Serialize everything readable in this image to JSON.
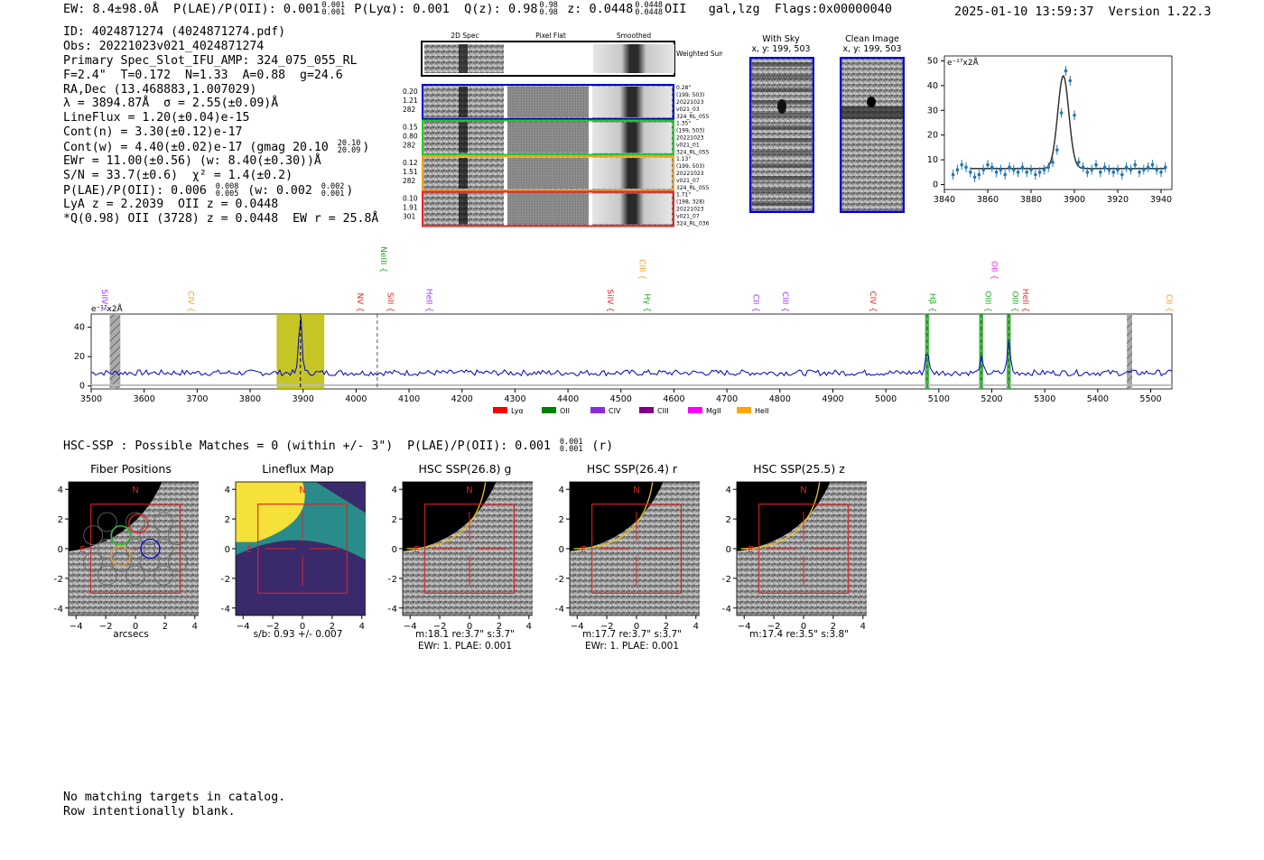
{
  "header": {
    "ew": "EW: 8.4±98.0Å",
    "plae_label": "P(LAE)/P(OII): 0.001",
    "plae_hi": "0.001",
    "plae_lo": "0.001",
    "plya": "P(Lyα): 0.001",
    "qz_label": "Q(z): 0.98",
    "qz_hi": "0.98",
    "qz_lo": "0.98",
    "z_label": "z: 0.0448",
    "z_hi": "0.0448",
    "z_lo": "0.0448",
    "z_line": "OII",
    "classification": "gal,lzg",
    "flags": "Flags:0x00000040",
    "timestamp": "2025-01-10 13:59:37",
    "version": "Version 1.22.3"
  },
  "info": {
    "id": "ID: 4024871274 (4024871274.pdf)",
    "obs": "Obs: 20221023v021_4024871274",
    "primary": "Primary Spec_Slot_IFU_AMP: 324_075_055_RL",
    "params": "F=2.4\"  T=0.172  N=1.33  A=0.88  g=24.6",
    "radec": "RA,Dec (13.468883,1.007029)",
    "lambda": "λ = 3894.87Å  σ = 2.55(±0.09)Å",
    "lineflux": "LineFlux = 1.20(±0.04)e-15",
    "contn": "Cont(n) = 3.30(±0.12)e-17",
    "contw": "Cont(w) = 4.40(±0.02)e-17 (gmag 20.10",
    "gmag_hi": "20.10",
    "gmag_lo": "20.09",
    "ewr": "EWr = 11.00(±0.56) (w: 8.40(±0.30))Å",
    "sn": "S/N = 33.7(±0.6)  χ² = 1.4(±0.2)",
    "plae2": "P(LAE)/P(OII): 0.006",
    "plae2_hi": "0.008",
    "plae2_lo": "0.005",
    "plae2_w": "(w: 0.002",
    "plae2_w_hi": "0.002",
    "plae2_w_lo": "0.001",
    "lya_z": "LyA z = 2.2039  OII z = 0.0448",
    "q_line": "*Q(0.98) OII (3728) z = 0.0448  EW r = 25.8Å"
  },
  "cutouts": {
    "col_titles": [
      "2D Spec",
      "Pixel Flat",
      "Smoothed"
    ],
    "weighted_sum": "Weighted Sum",
    "rows": [
      {
        "nums": [
          "0.20",
          "1.21",
          "282"
        ],
        "side": [
          "0.28\"",
          "(199, 503)",
          "20221023",
          "v021_03",
          "324_RL_055"
        ],
        "color": "#0000cc"
      },
      {
        "nums": [
          "0.15",
          "0.80",
          "282"
        ],
        "side": [
          "1.35\"",
          "(199, 503)",
          "20221023",
          "v021_01",
          "324_RL_055"
        ],
        "color": "#22cc22"
      },
      {
        "nums": [
          "0.12",
          "1.51",
          "282"
        ],
        "side": [
          "1.13\"",
          "(199, 503)",
          "20221023",
          "v021_07",
          "324_RL_055"
        ],
        "color": "#f0a020"
      },
      {
        "nums": [
          "0.10",
          "1.91",
          "301"
        ],
        "side": [
          "1.71\"",
          "(198, 328)",
          "20221023",
          "v021_07",
          "324_RL_036"
        ],
        "color": "#ee2222"
      }
    ],
    "with_sky": "With Sky",
    "with_sky_xy": "x, y: 199, 503",
    "clean_image": "Clean Image",
    "clean_image_xy": "x, y: 199, 503"
  },
  "chart_data": [
    {
      "type": "scatter",
      "name": "zoom-line-fit",
      "ylabel": "e⁻¹⁷x2Å",
      "xlim": [
        3840,
        3945
      ],
      "ylim": [
        -2,
        52
      ],
      "xticks": [
        3840,
        3860,
        3880,
        3900,
        3920,
        3940
      ],
      "yticks": [
        0,
        10,
        20,
        30,
        40,
        50
      ],
      "points_x": [
        3844,
        3846,
        3848,
        3850,
        3852,
        3854,
        3856,
        3858,
        3860,
        3862,
        3864,
        3866,
        3868,
        3870,
        3872,
        3874,
        3876,
        3878,
        3880,
        3882,
        3884,
        3886,
        3888,
        3890,
        3892,
        3894,
        3896,
        3898,
        3900,
        3902,
        3904,
        3906,
        3908,
        3910,
        3912,
        3914,
        3916,
        3918,
        3920,
        3922,
        3924,
        3926,
        3928,
        3930,
        3932,
        3934,
        3936,
        3938,
        3940,
        3942
      ],
      "points_y": [
        4,
        6,
        8,
        7,
        5,
        3,
        4,
        6,
        8,
        7,
        5,
        6,
        4,
        7,
        6,
        5,
        7,
        5,
        6,
        4,
        5,
        6,
        7,
        9,
        14,
        29,
        46,
        42,
        28,
        9,
        7,
        5,
        6,
        8,
        5,
        7,
        6,
        5,
        6,
        4,
        7,
        6,
        8,
        5,
        6,
        7,
        8,
        6,
        5,
        7
      ],
      "fit_center": 3894.87,
      "fit_sigma": 2.55,
      "fit_amp": 37.5,
      "fit_cont": 6.5,
      "point_color": "#1f77b4",
      "fit_color": "#333333"
    },
    {
      "type": "line",
      "name": "full-spectrum",
      "ylabel": "e⁻¹⁷x2Å",
      "xlim": [
        3500,
        5540
      ],
      "ylim": [
        -2,
        49
      ],
      "xticks": [
        3500,
        3600,
        3700,
        3800,
        3900,
        4000,
        4100,
        4200,
        4300,
        4400,
        4500,
        4600,
        4700,
        4800,
        4900,
        5000,
        5100,
        5200,
        5300,
        5400,
        5500
      ],
      "yticks": [
        0,
        20,
        40
      ],
      "baseline": 9,
      "spectrum_color": "#0000cc",
      "peaks": [
        {
          "x": 3895,
          "height": 40,
          "sigma": 3
        },
        {
          "x": 5078,
          "height": 16,
          "sigma": 3
        },
        {
          "x": 5180,
          "height": 10,
          "sigma": 3
        },
        {
          "x": 5232,
          "height": 22,
          "sigma": 3
        }
      ],
      "shaded_regions": [
        {
          "x0": 3535,
          "x1": 3555,
          "color": "#999999",
          "hatch": true
        },
        {
          "x0": 3850,
          "x1": 3940,
          "color": "#bbbb00",
          "hatch": false
        },
        {
          "x0": 5074,
          "x1": 5082,
          "color": "#33aa33",
          "hatch": false
        },
        {
          "x0": 5176,
          "x1": 5184,
          "color": "#33aa33",
          "hatch": false
        },
        {
          "x0": 5228,
          "x1": 5236,
          "color": "#33aa33",
          "hatch": false
        },
        {
          "x0": 5455,
          "x1": 5465,
          "color": "#999999",
          "hatch": true
        }
      ],
      "dashed_lines": [
        {
          "x": 3895,
          "color": "#000000"
        },
        {
          "x": 4040,
          "color": "#555555"
        },
        {
          "x": 5078,
          "color": "#116611"
        },
        {
          "x": 5180,
          "color": "#116611"
        },
        {
          "x": 5232,
          "color": "#116611"
        }
      ],
      "line_labels": [
        {
          "text": "SiIV {",
          "x": 3515,
          "color": "#9933ff",
          "row": 0
        },
        {
          "text": "CIV {",
          "x": 3678,
          "color": "#f0a020",
          "row": 0
        },
        {
          "text": "NeIII {",
          "x": 4042,
          "color": "#22aa22",
          "row": 2
        },
        {
          "text": "NV {",
          "x": 3998,
          "color": "#ee2222",
          "row": 0
        },
        {
          "text": "SiII {",
          "x": 4055,
          "color": "#ee2222",
          "row": 0
        },
        {
          "text": "HeII {",
          "x": 4128,
          "color": "#9933ff",
          "row": 0
        },
        {
          "text": "SiIV {",
          "x": 4470,
          "color": "#ee2222",
          "row": 0
        },
        {
          "text": "CIII {",
          "x": 4530,
          "color": "#f0a020",
          "row": 1
        },
        {
          "text": "Hγ {",
          "x": 4540,
          "color": "#22aa22",
          "row": 0
        },
        {
          "text": "CII {",
          "x": 4745,
          "color": "#9933ff",
          "row": 0
        },
        {
          "text": "CIII {",
          "x": 4800,
          "color": "#9933ff",
          "row": 0
        },
        {
          "text": "CIV {",
          "x": 4966,
          "color": "#ee2222",
          "row": 0
        },
        {
          "text": "Hβ {",
          "x": 5078,
          "color": "#22aa22",
          "row": 0
        },
        {
          "text": "OII {",
          "x": 5195,
          "color": "#ff22ff",
          "row": 1
        },
        {
          "text": "OIII {",
          "x": 5183,
          "color": "#22aa22",
          "row": 0
        },
        {
          "text": "OIII {",
          "x": 5234,
          "color": "#22aa22",
          "row": 0
        },
        {
          "text": "HeII {",
          "x": 5254,
          "color": "#ee2222",
          "row": 0
        },
        {
          "text": "CII {",
          "x": 5525,
          "color": "#f0a020",
          "row": 0
        }
      ],
      "legend": [
        {
          "name": "Lyα",
          "color": "#ff0000"
        },
        {
          "name": "OII",
          "color": "#008000"
        },
        {
          "name": "CIV",
          "color": "#8a2be2"
        },
        {
          "name": "CIII",
          "color": "#800080"
        },
        {
          "name": "MgII",
          "color": "#ff00ff"
        },
        {
          "name": "HeII",
          "color": "#ffa500"
        }
      ],
      "legend_position": "bottom-center"
    }
  ],
  "hsc": {
    "summary": "HSC-SSP : Possible Matches = 0 (within +/- 3\")  P(LAE)/P(OII): 0.001",
    "summary_hi": "0.001",
    "summary_lo": "0.001",
    "summary_suffix": "(r)",
    "ticks": [
      "−4",
      "−2",
      "0",
      "2",
      "4"
    ],
    "ytick_labels": [
      "4",
      "2",
      "0",
      "−2",
      "−4"
    ],
    "north": "N",
    "east": "E",
    "panels": [
      {
        "title": "Fiber Positions",
        "caption1": "arcsecs",
        "caption2": ""
      },
      {
        "title": "Lineflux Map",
        "caption1": "s/b: 0.93 +/- 0.007",
        "caption2": ""
      },
      {
        "title": "HSC SSP(26.8) g",
        "caption1": "m:18.1  re:3.7\"  s:3.7\"",
        "caption2": "EWr: 1. PLAE: 0.001"
      },
      {
        "title": "HSC SSP(26.4) r",
        "caption1": "m:17.7  re:3.7\"  s:3.7\"",
        "caption2": "EWr: 1. PLAE: 0.001"
      },
      {
        "title": "HSC SSP(25.5) z",
        "caption1": "m:17.4  re:3.5\"  s:3.8\"",
        "caption2": ""
      }
    ]
  },
  "footer": {
    "line1": "No matching targets in catalog.",
    "line2": "Row intentionally blank."
  }
}
